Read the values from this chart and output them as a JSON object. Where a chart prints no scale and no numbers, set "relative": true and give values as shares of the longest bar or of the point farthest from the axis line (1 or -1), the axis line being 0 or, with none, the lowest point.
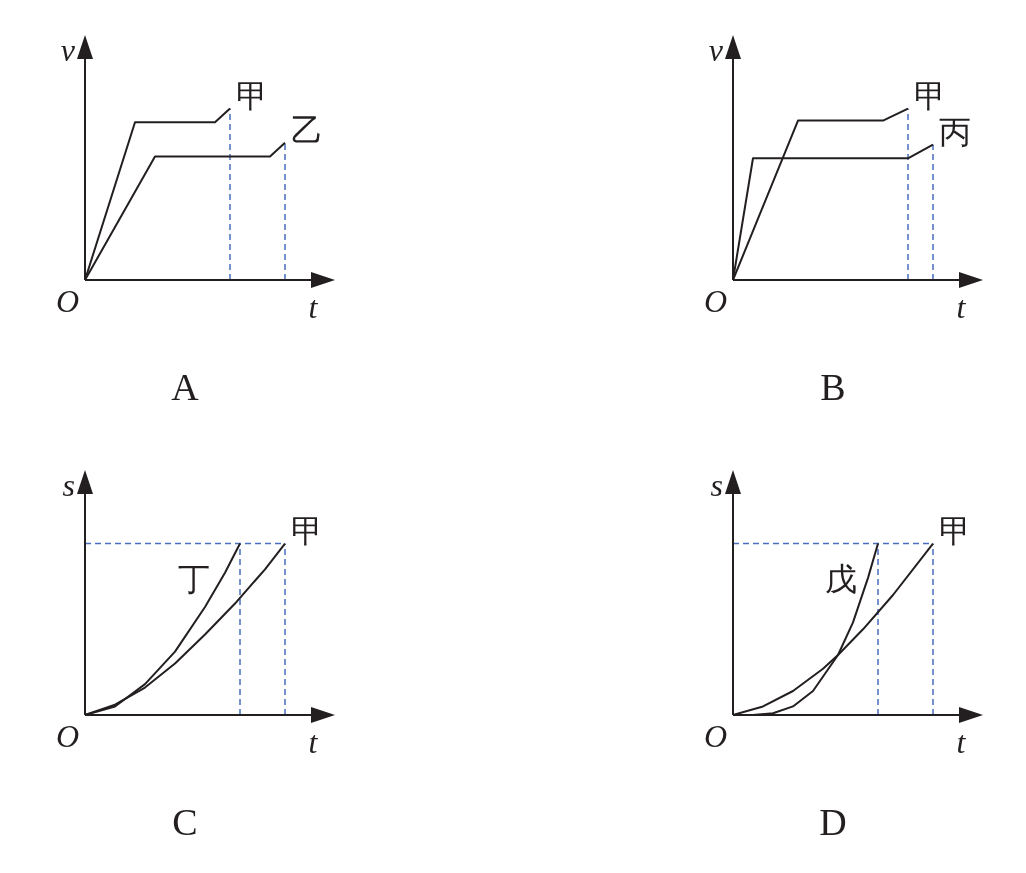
{
  "chart_data": [
    {
      "type": "line",
      "relative": true,
      "xlabel": "t",
      "ylabel": "v",
      "categories": [
        null,
        null,
        null,
        null,
        null,
        null,
        null,
        null,
        null,
        null,
        null,
        null,
        null,
        null,
        null,
        null,
        null,
        null,
        null,
        null,
        null,
        null,
        null,
        null,
        null,
        null,
        null,
        null,
        null,
        null,
        null,
        null,
        null,
        null,
        null,
        null,
        null,
        null,
        null,
        null,
        null
      ],
      "series": [
        {
          "name": "甲",
          "color": "#231f20",
          "values": [
            0,
            null,
            null,
            null,
            null,
            null,
            null,
            null,
            null,
            null,
            0.92,
            null,
            null,
            null,
            null,
            null,
            null,
            null,
            null,
            null,
            null,
            null,
            null,
            null,
            null,
            null,
            0.92,
            null,
            null,
            1,
            null,
            null,
            null,
            null,
            null,
            null,
            null,
            null,
            null,
            null,
            null
          ]
        },
        {
          "name": "乙",
          "color": "#231f20",
          "values": [
            0,
            null,
            null,
            null,
            null,
            null,
            null,
            null,
            null,
            null,
            null,
            null,
            null,
            null,
            0.72,
            null,
            null,
            null,
            null,
            null,
            null,
            null,
            null,
            null,
            null,
            null,
            null,
            null,
            null,
            null,
            null,
            null,
            null,
            null,
            null,
            null,
            null,
            0.72,
            null,
            null,
            0.8
          ]
        }
      ],
      "annotations": [
        "O",
        "A"
      ]
    },
    {
      "type": "line",
      "relative": true,
      "xlabel": "t",
      "ylabel": "v",
      "categories": [
        null,
        null,
        null,
        null,
        null,
        null,
        null,
        null,
        null,
        null,
        null,
        null,
        null,
        null,
        null,
        null,
        null,
        null,
        null,
        null,
        null,
        null,
        null,
        null,
        null,
        null,
        null,
        null,
        null,
        null,
        null,
        null,
        null,
        null,
        null,
        null,
        null,
        null,
        null,
        null,
        null
      ],
      "series": [
        {
          "name": "甲",
          "color": "#231f20",
          "values": [
            0,
            null,
            null,
            null,
            null,
            null,
            null,
            null,
            null,
            null,
            null,
            null,
            null,
            0.93,
            null,
            null,
            null,
            null,
            null,
            null,
            null,
            null,
            null,
            null,
            null,
            null,
            null,
            null,
            null,
            null,
            0.93,
            null,
            null,
            null,
            null,
            1,
            null,
            null,
            null,
            null,
            null
          ]
        },
        {
          "name": "丙",
          "color": "#231f20",
          "values": [
            0,
            null,
            null,
            null,
            0.71,
            null,
            null,
            null,
            null,
            null,
            null,
            null,
            null,
            null,
            null,
            null,
            null,
            null,
            null,
            null,
            null,
            null,
            null,
            null,
            null,
            null,
            null,
            null,
            null,
            null,
            null,
            null,
            null,
            null,
            null,
            0.71,
            null,
            null,
            null,
            null,
            0.79
          ]
        }
      ],
      "annotations": [
        "O",
        "B"
      ]
    },
    {
      "type": "line",
      "relative": true,
      "xlabel": "t",
      "ylabel": "s",
      "categories": [
        null,
        null,
        null,
        null,
        null,
        null,
        null,
        null,
        null,
        null,
        null,
        null,
        null,
        null,
        null,
        null,
        null,
        null,
        null,
        null,
        null,
        null,
        null,
        null,
        null,
        null,
        null,
        null,
        null,
        null,
        null,
        null,
        null,
        null,
        null,
        null,
        null,
        null,
        null,
        null,
        null
      ],
      "series": [
        {
          "name": "丁",
          "color": "#231f20",
          "values": [
            0,
            null,
            null,
            null,
            null,
            null,
            0.05,
            null,
            null,
            null,
            null,
            null,
            0.18,
            null,
            null,
            null,
            null,
            null,
            0.37,
            null,
            null,
            null,
            null,
            null,
            0.63,
            null,
            null,
            null,
            0.83,
            null,
            null,
            1,
            null,
            null,
            null,
            null,
            null,
            null,
            null,
            null,
            null
          ]
        },
        {
          "name": "甲",
          "color": "#231f20",
          "values": [
            0,
            null,
            null,
            null,
            null,
            null,
            0.06,
            null,
            null,
            null,
            null,
            null,
            0.16,
            null,
            null,
            null,
            null,
            null,
            0.3,
            null,
            null,
            null,
            null,
            null,
            0.47,
            null,
            null,
            null,
            null,
            null,
            0.65,
            null,
            null,
            null,
            null,
            null,
            0.85,
            null,
            null,
            null,
            1
          ]
        }
      ],
      "ref_lines": [
        {
          "axis": "y",
          "value": 1,
          "color": "#4a6fbf",
          "line_style": "dashed"
        }
      ],
      "annotations": [
        "O",
        "C"
      ]
    },
    {
      "type": "line",
      "relative": true,
      "xlabel": "t",
      "ylabel": "s",
      "categories": [
        null,
        null,
        null,
        null,
        null,
        null,
        null,
        null,
        null,
        null,
        null,
        null,
        null,
        null,
        null,
        null,
        null,
        null,
        null,
        null,
        null,
        null,
        null,
        null,
        null,
        null,
        null,
        null,
        null,
        null,
        null,
        null,
        null,
        null,
        null,
        null,
        null,
        null,
        null,
        null,
        null
      ],
      "series": [
        {
          "name": "戊",
          "color": "#231f20",
          "values": [
            null,
            null,
            null,
            null,
            0,
            null,
            null,
            null,
            0.01,
            null,
            null,
            null,
            0.05,
            null,
            null,
            null,
            0.14,
            null,
            null,
            null,
            null,
            0.35,
            null,
            null,
            0.54,
            null,
            null,
            0.8,
            null,
            1,
            null,
            null,
            null,
            null,
            null,
            null,
            null,
            null,
            null,
            null,
            null
          ]
        },
        {
          "name": "甲",
          "color": "#231f20",
          "values": [
            0,
            null,
            null,
            null,
            null,
            null,
            0.05,
            null,
            null,
            null,
            null,
            null,
            0.14,
            null,
            null,
            null,
            null,
            null,
            0.27,
            null,
            null,
            0.35,
            null,
            null,
            null,
            null,
            0.5,
            null,
            null,
            null,
            null,
            null,
            0.7,
            null,
            null,
            null,
            null,
            null,
            null,
            null,
            1
          ]
        }
      ],
      "ref_lines": [
        {
          "axis": "y",
          "value": 1,
          "color": "#4a6fbf",
          "line_style": "dashed"
        }
      ],
      "annotations": [
        "O",
        "D"
      ]
    }
  ]
}
